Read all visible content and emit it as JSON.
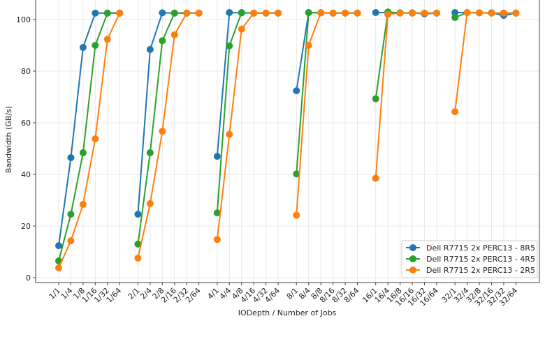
{
  "chart_data": {
    "type": "line",
    "title": "",
    "xlabel": "IODepth / Number of Jobs",
    "ylabel": "Bandwidth (GB/s)",
    "ylim": [
      -2,
      107
    ],
    "yticks": [
      0,
      20,
      40,
      60,
      80,
      100
    ],
    "grid": true,
    "legend_position": "bottom-right",
    "groups": [
      [
        "1/1",
        "1/4",
        "1/8",
        "1/16",
        "1/32",
        "1/64"
      ],
      [
        "2/1",
        "2/4",
        "2/8",
        "2/16",
        "2/32",
        "2/64"
      ],
      [
        "4/1",
        "4/4",
        "4/8",
        "4/16",
        "4/32",
        "4/64"
      ],
      [
        "8/1",
        "8/4",
        "8/8",
        "8/16",
        "8/32",
        "8/64"
      ],
      [
        "16/1",
        "16/4",
        "16/8",
        "16/16",
        "16/32",
        "16/64"
      ],
      [
        "32/1",
        "32/4",
        "32/8",
        "32/16",
        "32/32",
        "32/64"
      ]
    ],
    "series": [
      {
        "name": "Dell R7715 2x PERC13 - 8R5",
        "color": "#1f77b4",
        "values": [
          [
            12.4,
            46.5,
            89.2,
            102.5,
            102.5,
            102.5
          ],
          [
            24.6,
            88.4,
            102.6,
            102.5,
            102.5,
            102.5
          ],
          [
            47.0,
            102.7,
            102.6,
            102.5,
            102.5,
            102.5
          ],
          [
            72.4,
            102.7,
            102.6,
            102.5,
            102.5,
            102.5
          ],
          [
            102.7,
            102.7,
            102.6,
            102.6,
            102.2,
            102.5
          ],
          [
            102.7,
            102.7,
            102.6,
            102.6,
            101.6,
            102.5
          ]
        ]
      },
      {
        "name": "Dell R7715 2x PERC13 - 4R5",
        "color": "#2ca02c",
        "values": [
          [
            6.5,
            24.6,
            48.4,
            90.0,
            102.5,
            102.5
          ],
          [
            13.0,
            48.4,
            91.8,
            102.5,
            102.5,
            102.5
          ],
          [
            25.1,
            89.8,
            102.7,
            102.5,
            102.5,
            102.5
          ],
          [
            40.2,
            102.7,
            102.6,
            102.5,
            102.5,
            102.5
          ],
          [
            69.3,
            102.9,
            102.6,
            102.5,
            102.5,
            102.5
          ],
          [
            100.8,
            102.7,
            102.6,
            102.5,
            102.5,
            102.5
          ]
        ]
      },
      {
        "name": "Dell R7715 2x PERC13 - 2R5",
        "color": "#ff7f0e",
        "values": [
          [
            3.8,
            14.3,
            28.4,
            53.8,
            92.4,
            102.5
          ],
          [
            7.6,
            28.7,
            56.7,
            94.1,
            102.5,
            102.5
          ],
          [
            14.8,
            55.5,
            96.3,
            102.5,
            102.5,
            102.5
          ],
          [
            24.2,
            90.0,
            102.7,
            102.5,
            102.5,
            102.5
          ],
          [
            38.5,
            102.0,
            102.5,
            102.5,
            102.5,
            102.5
          ],
          [
            64.3,
            102.7,
            102.6,
            102.5,
            102.5,
            102.5
          ]
        ]
      }
    ]
  }
}
